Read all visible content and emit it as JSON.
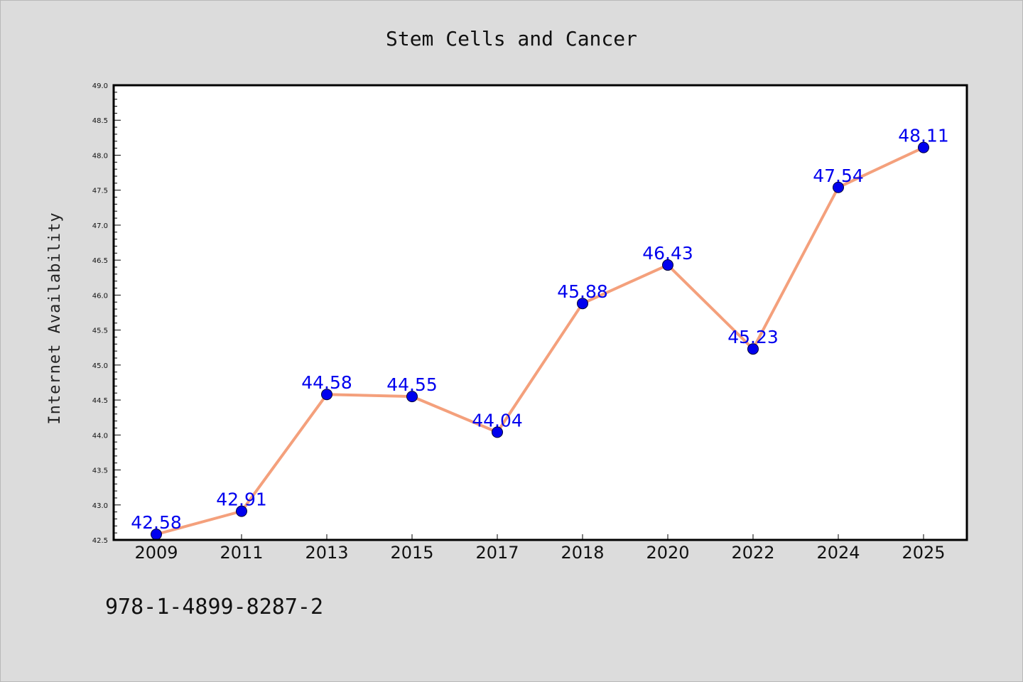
{
  "chart_data": {
    "type": "line",
    "title": "Stem Cells and Cancer",
    "xlabel": "",
    "ylabel": "Internet Availability",
    "categories": [
      "2009",
      "2011",
      "2013",
      "2015",
      "2017",
      "2018",
      "2020",
      "2022",
      "2024",
      "2025"
    ],
    "series": [
      {
        "values": [
          42.58,
          42.91,
          44.58,
          44.55,
          44.04,
          45.88,
          46.43,
          45.23,
          47.54,
          48.11
        ],
        "data_labels": [
          "42.58",
          "42.91",
          "44.58",
          "44.55",
          "44.04",
          "45.88",
          "46.43",
          "45.23",
          "47.54",
          "48.11"
        ]
      }
    ],
    "ylim": [
      42.5,
      49.0
    ],
    "yticks": [
      "42.5",
      "43.0",
      "43.5",
      "44.0",
      "44.5",
      "45.0",
      "45.5",
      "46.0",
      "46.5",
      "47.0",
      "47.5",
      "48.0",
      "48.5",
      "49.0"
    ],
    "grid": false,
    "legend": "none",
    "line_color": "#f4a07c",
    "marker_color": "#0000ee",
    "label_color": "#0000ee"
  },
  "footer": {
    "isbn": "978-1-4899-8287-2"
  }
}
